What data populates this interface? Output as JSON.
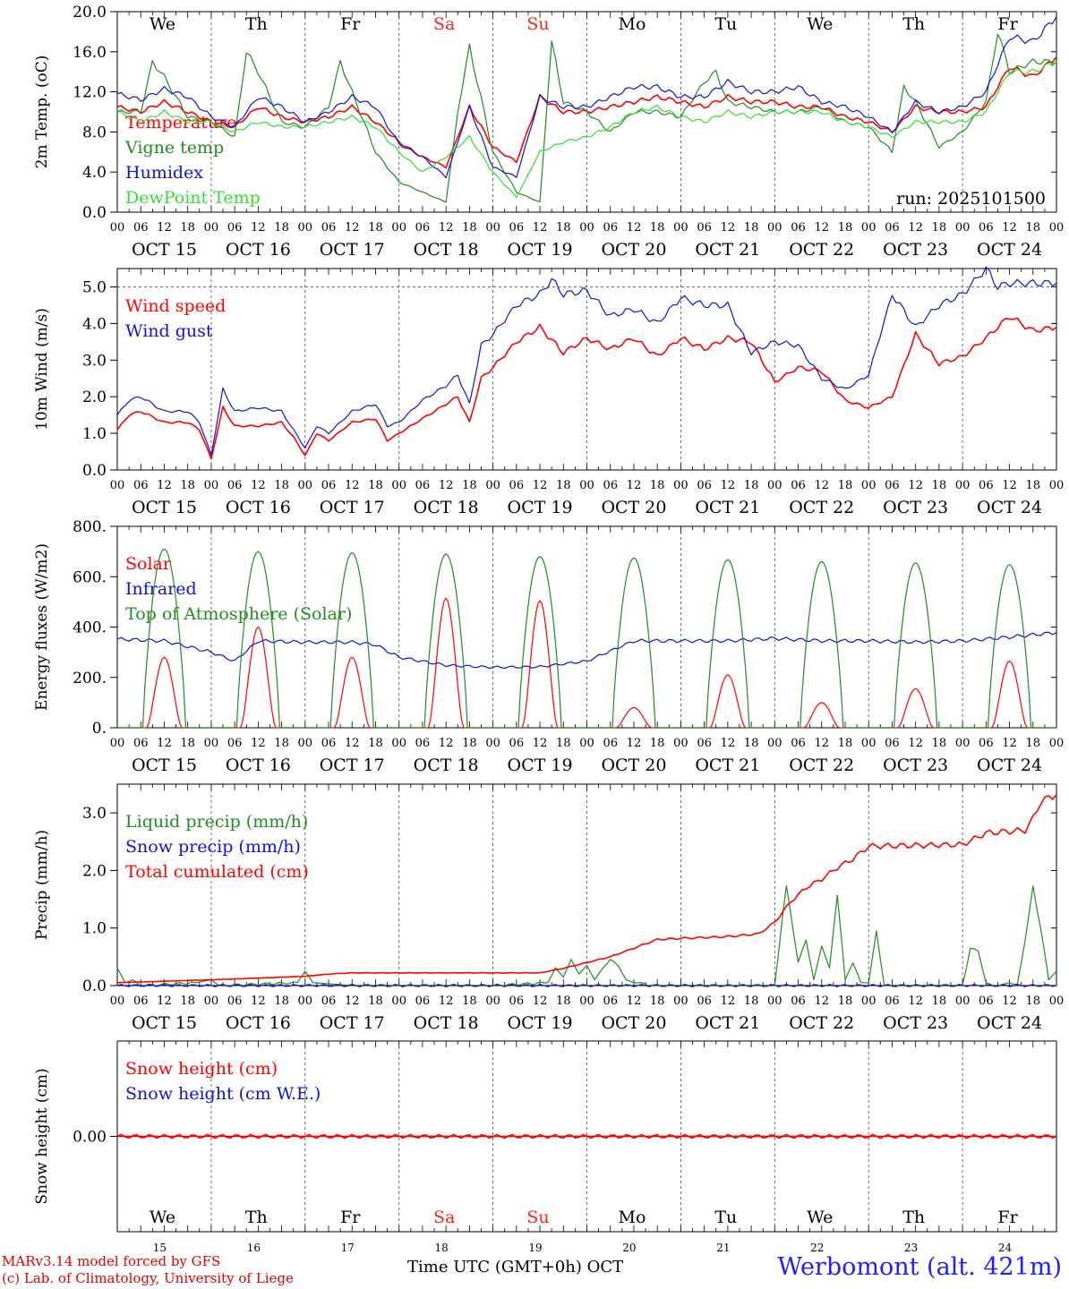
{
  "run_label": "run: 2025101500",
  "colors": {
    "red": "#ff0000",
    "green": "#228b22",
    "blue": "#1010e0",
    "light_green": "#33dd33",
    "weekend": "#ff2020"
  },
  "days": [
    {
      "abbr": "We",
      "date": "OCT 15",
      "num": "15"
    },
    {
      "abbr": "Th",
      "date": "OCT 16",
      "num": "16"
    },
    {
      "abbr": "Fr",
      "date": "OCT 17",
      "num": "17"
    },
    {
      "abbr": "Sa",
      "date": "OCT 18",
      "num": "18",
      "weekend": true
    },
    {
      "abbr": "Su",
      "date": "OCT 19",
      "num": "19",
      "weekend": true
    },
    {
      "abbr": "Mo",
      "date": "OCT 20",
      "num": "20"
    },
    {
      "abbr": "Tu",
      "date": "OCT 21",
      "num": "21"
    },
    {
      "abbr": "We",
      "date": "OCT 22",
      "num": "22"
    },
    {
      "abbr": "Th",
      "date": "OCT 23",
      "num": "23"
    },
    {
      "abbr": "Fr",
      "date": "OCT 24",
      "num": "24"
    }
  ],
  "hour_ticks": [
    "00",
    "06",
    "12",
    "18"
  ],
  "footer": {
    "model": "MARv3.14 model forced by GFS",
    "credit": "(c) Lab. of Climatology, University of Liege",
    "axis": "Time UTC (GMT+0h)",
    "month": "OCT",
    "station": "Werbomont (alt. 421m)"
  },
  "chart_data": [
    {
      "id": "temp",
      "type": "line",
      "ylabel": "2m Temp. (oC)",
      "ylim": [
        0,
        20
      ],
      "yticks": [
        "0.0",
        "4.0",
        "8.0",
        "12.0",
        "16.0",
        "20.0"
      ],
      "series": [
        {
          "name": "Temperature",
          "color": "red",
          "x": [
            0,
            6,
            12,
            18,
            24,
            30,
            36,
            42,
            48,
            54,
            60,
            66,
            72,
            78,
            84,
            90,
            96,
            102,
            108,
            114,
            120,
            126,
            132,
            138,
            144,
            150,
            156,
            162,
            168,
            174,
            180,
            186,
            192,
            198,
            204,
            210,
            216,
            222,
            228,
            234,
            240
          ],
          "y": [
            10.5,
            10,
            11,
            10,
            9,
            8.5,
            10.5,
            9.5,
            9,
            9.5,
            10.5,
            9,
            7,
            5.5,
            4.5,
            10.5,
            6.5,
            5,
            11.5,
            10,
            10,
            10.5,
            11,
            11.5,
            11,
            10.5,
            11.5,
            11,
            11,
            10.5,
            10.5,
            9.5,
            9,
            8,
            10.5,
            10,
            10,
            10.5,
            14.5,
            13.5,
            15.5
          ]
        },
        {
          "name": "Vigne temp",
          "color": "green",
          "x": [
            0,
            6,
            9,
            12,
            18,
            24,
            30,
            33,
            36,
            42,
            48,
            54,
            57,
            60,
            66,
            72,
            78,
            84,
            87,
            90,
            96,
            102,
            108,
            111,
            114,
            120,
            126,
            132,
            138,
            144,
            150,
            153,
            156,
            162,
            168,
            174,
            180,
            186,
            192,
            198,
            201,
            204,
            210,
            216,
            222,
            225,
            228,
            234,
            240
          ],
          "y": [
            10,
            10,
            15,
            13.5,
            9.5,
            9,
            7.5,
            16,
            14,
            9,
            8.5,
            10.5,
            15,
            12,
            6,
            3,
            2,
            1,
            10,
            16.5,
            6,
            2,
            1,
            17,
            11,
            10,
            8,
            10,
            10,
            9.5,
            13,
            14,
            11,
            10.5,
            10,
            10,
            10.5,
            9,
            8.5,
            6,
            12.5,
            11,
            6.5,
            8,
            11,
            18,
            14,
            15,
            15
          ]
        },
        {
          "name": "Humidex",
          "color": "blue",
          "x": [
            0,
            6,
            12,
            18,
            24,
            30,
            36,
            42,
            48,
            54,
            60,
            66,
            72,
            78,
            84,
            90,
            96,
            102,
            108,
            114,
            120,
            126,
            132,
            138,
            144,
            150,
            156,
            162,
            168,
            174,
            180,
            186,
            192,
            198,
            204,
            210,
            216,
            222,
            228,
            234,
            240
          ],
          "y": [
            11.8,
            11.2,
            12.3,
            11.5,
            9.5,
            8.5,
            11.5,
            10.5,
            9,
            10,
            11.5,
            10.5,
            6.8,
            5.5,
            3.5,
            10.5,
            4.5,
            3.5,
            11.5,
            10.5,
            10.5,
            11.5,
            12.5,
            12.5,
            11.5,
            11.5,
            13,
            12,
            12,
            12.5,
            11,
            10.5,
            9.5,
            8,
            11,
            10,
            10.5,
            12,
            17.5,
            17,
            19.5
          ]
        },
        {
          "name": "DewPoint Temp",
          "color": "light_green",
          "x": [
            0,
            6,
            12,
            18,
            24,
            30,
            36,
            42,
            48,
            54,
            60,
            66,
            72,
            78,
            84,
            90,
            96,
            102,
            108,
            114,
            120,
            126,
            132,
            138,
            144,
            150,
            156,
            162,
            168,
            174,
            180,
            186,
            192,
            198,
            204,
            210,
            216,
            222,
            228,
            234,
            240
          ],
          "y": [
            10,
            9,
            10,
            9,
            9,
            8,
            9,
            8.5,
            8.5,
            9,
            9.5,
            8.5,
            6,
            4,
            5.5,
            7.5,
            4,
            1.5,
            6,
            7,
            7.5,
            8.5,
            10,
            10.5,
            9.5,
            9,
            10,
            9.5,
            10,
            10,
            10,
            9,
            8.5,
            7.5,
            9,
            9,
            9,
            10,
            14,
            14,
            15
          ]
        }
      ],
      "legend_placement": "top-left"
    },
    {
      "id": "wind",
      "type": "line",
      "ylabel": "10m Wind (m/s)",
      "ylim": [
        0,
        5.5
      ],
      "yticks": [
        "0.0",
        "1.0",
        "2.0",
        "3.0",
        "4.0",
        "5.0"
      ],
      "reference_line": 5.0,
      "series": [
        {
          "name": "Wind speed",
          "color": "red",
          "x": [
            0,
            3,
            6,
            12,
            18,
            21,
            24,
            27,
            30,
            36,
            42,
            45,
            48,
            51,
            54,
            60,
            66,
            69,
            72,
            78,
            84,
            87,
            90,
            93,
            96,
            102,
            108,
            114,
            120,
            126,
            132,
            138,
            144,
            150,
            156,
            162,
            168,
            174,
            180,
            186,
            192,
            198,
            204,
            210,
            216,
            222,
            228,
            234,
            240
          ],
          "y": [
            1.1,
            1.5,
            1.6,
            1.3,
            1.3,
            1.1,
            0.3,
            1.7,
            1.2,
            1.2,
            1.3,
            0.9,
            0.4,
            1.0,
            0.8,
            1.3,
            1.4,
            0.8,
            1.0,
            1.4,
            1.8,
            2.0,
            1.3,
            2.5,
            2.8,
            3.5,
            3.9,
            3.2,
            3.6,
            3.3,
            3.6,
            3.1,
            3.6,
            3.3,
            3.6,
            3.5,
            2.4,
            2.8,
            2.7,
            1.9,
            1.7,
            2.0,
            3.7,
            2.9,
            3.1,
            3.6,
            4.2,
            3.8,
            3.9
          ]
        },
        {
          "name": "Wind gust",
          "color": "blue",
          "x": [
            0,
            3,
            6,
            12,
            18,
            21,
            24,
            27,
            30,
            36,
            42,
            45,
            48,
            51,
            54,
            60,
            66,
            69,
            72,
            78,
            84,
            87,
            90,
            93,
            96,
            102,
            108,
            111,
            114,
            120,
            126,
            132,
            138,
            144,
            150,
            156,
            162,
            168,
            174,
            180,
            186,
            192,
            198,
            204,
            210,
            216,
            222,
            225,
            228,
            234,
            240
          ],
          "y": [
            1.5,
            1.9,
            2.0,
            1.6,
            1.6,
            1.3,
            0.4,
            2.2,
            1.6,
            1.7,
            1.6,
            1.1,
            0.6,
            1.2,
            1.0,
            1.6,
            1.8,
            1.2,
            1.3,
            1.9,
            2.3,
            2.6,
            1.8,
            3.4,
            3.7,
            4.5,
            4.8,
            5.2,
            4.8,
            4.9,
            4.2,
            4.4,
            4.0,
            4.7,
            4.5,
            4.5,
            3.2,
            3.5,
            3.4,
            2.5,
            2.2,
            2.6,
            4.8,
            3.9,
            4.5,
            4.8,
            5.5,
            5.0,
            5.1,
            5.1,
            5.1
          ]
        }
      ],
      "legend_placement": "top-left"
    },
    {
      "id": "flux",
      "type": "line",
      "ylabel": "Energy fluxes (W/m2)",
      "ylim": [
        0,
        800
      ],
      "yticks": [
        "0.",
        "200.",
        "400.",
        "600.",
        "800."
      ],
      "series": [
        {
          "name": "Solar",
          "color": "red",
          "day_peaks": [
            280,
            400,
            280,
            515,
            505,
            80,
            210,
            100,
            155,
            265
          ]
        },
        {
          "name": "Infrared",
          "color": "blue",
          "x": [
            0,
            12,
            24,
            30,
            36,
            48,
            60,
            66,
            72,
            84,
            96,
            108,
            120,
            132,
            144,
            156,
            168,
            180,
            192,
            204,
            216,
            228,
            240
          ],
          "y": [
            352,
            345,
            300,
            265,
            345,
            340,
            340,
            330,
            280,
            248,
            240,
            242,
            265,
            345,
            345,
            345,
            355,
            345,
            345,
            340,
            345,
            360,
            378
          ]
        },
        {
          "name": "Top of Atmosphere (Solar)",
          "color": "green",
          "day_peaks": [
            710,
            700,
            695,
            690,
            680,
            675,
            668,
            660,
            655,
            648
          ]
        }
      ],
      "legend_placement": "top-left"
    },
    {
      "id": "precip",
      "type": "line",
      "ylabel": "Precip (mm/h)",
      "ylim": [
        0,
        3.5
      ],
      "yticks": [
        "0.0",
        "1.0",
        "2.0",
        "3.0"
      ],
      "series": [
        {
          "name": "Liquid precip (mm/h)",
          "color": "green",
          "x": [
            0,
            2,
            4,
            6,
            20,
            24,
            26,
            46,
            48,
            50,
            60,
            96,
            110,
            112,
            114,
            116,
            118,
            120,
            122,
            124,
            126,
            128,
            130,
            132,
            134,
            136,
            140,
            168,
            170,
            171,
            172,
            174,
            176,
            178,
            180,
            182,
            184,
            186,
            188,
            190,
            192,
            194,
            196,
            198,
            200,
            216,
            218,
            220,
            222,
            224,
            226,
            228,
            230,
            232,
            234,
            236,
            238,
            240
          ],
          "y": [
            0.3,
            0.05,
            0.1,
            0,
            0.05,
            0.1,
            0,
            0.05,
            0.25,
            0.05,
            0,
            0,
            0.05,
            0.3,
            0.15,
            0.45,
            0.2,
            0.35,
            0.1,
            0.3,
            0.45,
            0.35,
            0.1,
            0.05,
            0.05,
            0,
            0,
            0,
            1.2,
            1.7,
            1.3,
            0.4,
            0.8,
            0.1,
            0.7,
            0.3,
            1.6,
            0.1,
            0.4,
            0.05,
            0.05,
            0.95,
            0,
            0,
            0,
            0,
            0.65,
            0.6,
            0.05,
            0,
            0,
            0.05,
            0,
            0.8,
            1.7,
            1.0,
            0.1,
            0.25
          ]
        },
        {
          "name": "Snow precip (mm/h)",
          "color": "blue",
          "x": [
            0,
            240
          ],
          "y": [
            0,
            0
          ]
        },
        {
          "name": "Total cumulated (cm)",
          "color": "red",
          "x": [
            0,
            24,
            48,
            54,
            60,
            96,
            108,
            114,
            120,
            126,
            132,
            138,
            144,
            156,
            164,
            168,
            172,
            176,
            180,
            184,
            188,
            192,
            216,
            222,
            232,
            234,
            236,
            240
          ],
          "y": [
            0.05,
            0.1,
            0.16,
            0.2,
            0.22,
            0.22,
            0.22,
            0.3,
            0.4,
            0.5,
            0.65,
            0.8,
            0.82,
            0.85,
            0.9,
            1.1,
            1.45,
            1.7,
            1.85,
            2.05,
            2.2,
            2.42,
            2.45,
            2.65,
            2.7,
            2.9,
            3.2,
            3.32
          ]
        }
      ],
      "legend_placement": "top-left"
    },
    {
      "id": "snow",
      "type": "line",
      "ylabel": "Snow height (cm)",
      "yticks": [
        "0.00"
      ],
      "series": [
        {
          "name": "Snow height (cm)",
          "color": "red",
          "x": [
            0,
            240
          ],
          "y": [
            0,
            0
          ]
        },
        {
          "name": "Snow height (cm W.E.)",
          "color": "blue"
        }
      ],
      "legend_placement": "top-left"
    }
  ]
}
